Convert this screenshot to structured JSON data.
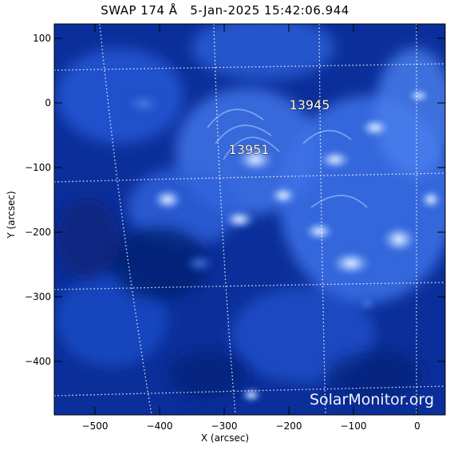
{
  "title": "SWAP 174 Å   5-Jan-2025 15:42:06.944",
  "xlabel": "X (arcsec)",
  "ylabel": "Y (arcsec)",
  "watermark": "SolarMonitor.org",
  "regions": [
    {
      "label": "13945",
      "x": -170,
      "y": -5
    },
    {
      "label": "13951",
      "x": -265,
      "y": -72
    }
  ],
  "x_ticks": [
    "−500",
    "−400",
    "−300",
    "−200",
    "−100",
    "0"
  ],
  "y_ticks": [
    "100",
    "0",
    "−100",
    "−200",
    "−300",
    "−400"
  ],
  "colors": {
    "background": "#0a2a8a",
    "bright": "#e8f0ff",
    "grid": "#ffffff"
  }
}
